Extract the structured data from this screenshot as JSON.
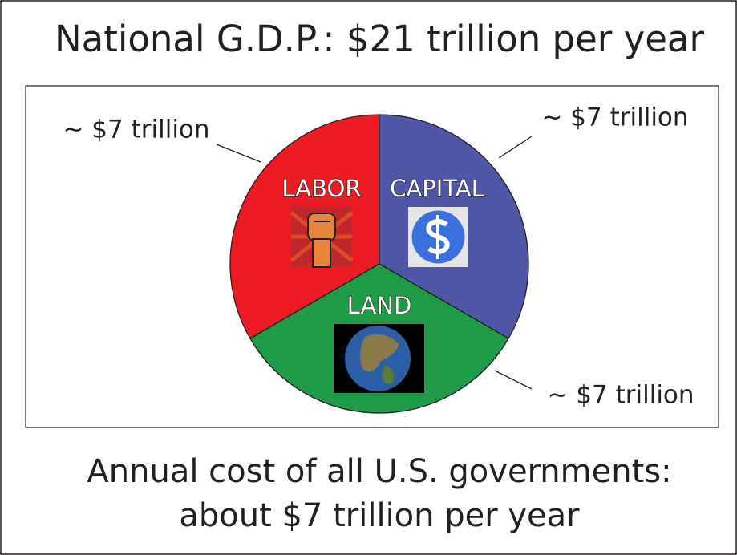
{
  "chart_data": {
    "type": "pie",
    "title": "National G.D.P.: $21 trillion per year",
    "categories": [
      "LABOR",
      "CAPITAL",
      "LAND"
    ],
    "values": [
      7,
      7,
      7
    ],
    "value_labels": [
      "~ $7 trillion",
      "~ $7 trillion",
      "~ $7 trillion"
    ],
    "colors": [
      "#ed1c24",
      "#5057a6",
      "#1f9a46"
    ],
    "annotations": [
      "Annual cost of all U.S. governments:",
      "about $7 trillion per year"
    ]
  }
}
